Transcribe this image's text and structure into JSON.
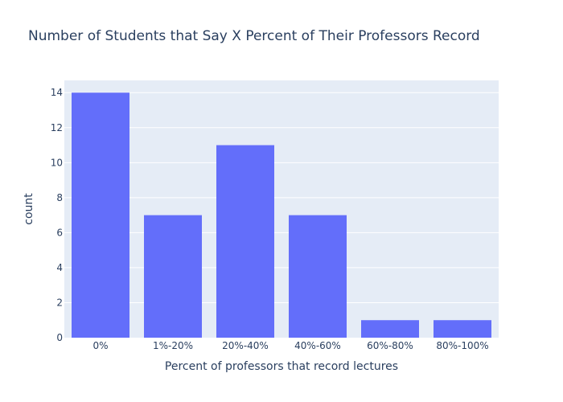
{
  "chart_data": {
    "type": "bar",
    "title": "Number of Students that Say X Percent of Their Professors Record",
    "xlabel": "Percent of professors that record lectures",
    "ylabel": "count",
    "categories": [
      "0%",
      "1%-20%",
      "20%-40%",
      "40%-60%",
      "60%-80%",
      "80%-100%"
    ],
    "values": [
      14,
      7,
      11,
      7,
      1,
      1
    ],
    "ylim": [
      0,
      14.7
    ],
    "yticks": [
      0,
      2,
      4,
      6,
      8,
      10,
      12,
      14
    ],
    "grid": true,
    "bar_color": "#636efa",
    "plot_bg": "#e5ecf6"
  }
}
